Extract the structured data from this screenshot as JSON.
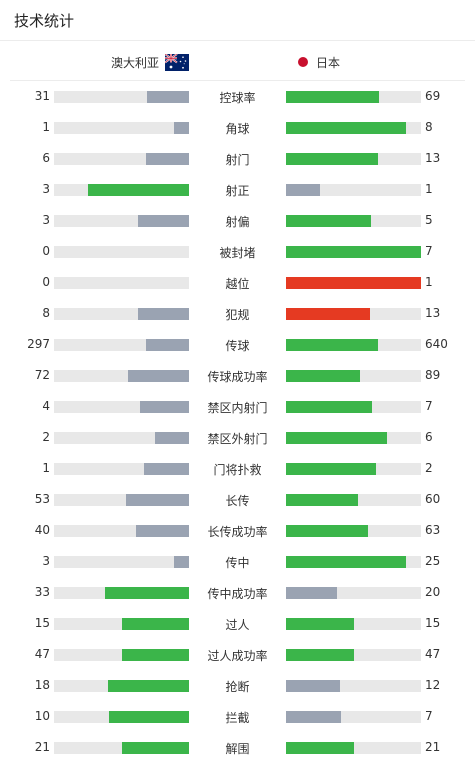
{
  "header": {
    "title": "技术统计"
  },
  "teams": {
    "home": "澳大利亚",
    "away": "日本"
  },
  "colors": {
    "win": "#3bb54a",
    "lose": "#9aa3b2",
    "red": "#e53a22",
    "track": "#e8e8e8"
  },
  "stats": [
    {
      "label": "控球率",
      "home": "31",
      "away": "69",
      "home_frac": 0.31,
      "away_frac": 0.69,
      "home_color": "lose",
      "away_color": "win"
    },
    {
      "label": "角球",
      "home": "1",
      "away": "8",
      "home_frac": 0.11,
      "away_frac": 0.89,
      "home_color": "lose",
      "away_color": "win"
    },
    {
      "label": "射门",
      "home": "6",
      "away": "13",
      "home_frac": 0.32,
      "away_frac": 0.68,
      "home_color": "lose",
      "away_color": "win"
    },
    {
      "label": "射正",
      "home": "3",
      "away": "1",
      "home_frac": 0.75,
      "away_frac": 0.25,
      "home_color": "win",
      "away_color": "lose"
    },
    {
      "label": "射偏",
      "home": "3",
      "away": "5",
      "home_frac": 0.38,
      "away_frac": 0.63,
      "home_color": "lose",
      "away_color": "win"
    },
    {
      "label": "被封堵",
      "home": "0",
      "away": "7",
      "home_frac": 0.0,
      "away_frac": 1.0,
      "home_color": "lose",
      "away_color": "win"
    },
    {
      "label": "越位",
      "home": "0",
      "away": "1",
      "home_frac": 0.0,
      "away_frac": 1.0,
      "home_color": "lose",
      "away_color": "red"
    },
    {
      "label": "犯规",
      "home": "8",
      "away": "13",
      "home_frac": 0.38,
      "away_frac": 0.62,
      "home_color": "lose",
      "away_color": "red"
    },
    {
      "label": "传球",
      "home": "297",
      "away": "640",
      "home_frac": 0.32,
      "away_frac": 0.68,
      "home_color": "lose",
      "away_color": "win"
    },
    {
      "label": "传球成功率",
      "home": "72",
      "away": "89",
      "home_frac": 0.45,
      "away_frac": 0.55,
      "home_color": "lose",
      "away_color": "win"
    },
    {
      "label": "禁区内射门",
      "home": "4",
      "away": "7",
      "home_frac": 0.36,
      "away_frac": 0.64,
      "home_color": "lose",
      "away_color": "win"
    },
    {
      "label": "禁区外射门",
      "home": "2",
      "away": "6",
      "home_frac": 0.25,
      "away_frac": 0.75,
      "home_color": "lose",
      "away_color": "win"
    },
    {
      "label": "门将扑救",
      "home": "1",
      "away": "2",
      "home_frac": 0.33,
      "away_frac": 0.67,
      "home_color": "lose",
      "away_color": "win"
    },
    {
      "label": "长传",
      "home": "53",
      "away": "60",
      "home_frac": 0.47,
      "away_frac": 0.53,
      "home_color": "lose",
      "away_color": "win"
    },
    {
      "label": "长传成功率",
      "home": "40",
      "away": "63",
      "home_frac": 0.39,
      "away_frac": 0.61,
      "home_color": "lose",
      "away_color": "win"
    },
    {
      "label": "传中",
      "home": "3",
      "away": "25",
      "home_frac": 0.11,
      "away_frac": 0.89,
      "home_color": "lose",
      "away_color": "win"
    },
    {
      "label": "传中成功率",
      "home": "33",
      "away": "20",
      "home_frac": 0.62,
      "away_frac": 0.38,
      "home_color": "win",
      "away_color": "lose"
    },
    {
      "label": "过人",
      "home": "15",
      "away": "15",
      "home_frac": 0.5,
      "away_frac": 0.5,
      "home_color": "win",
      "away_color": "win"
    },
    {
      "label": "过人成功率",
      "home": "47",
      "away": "47",
      "home_frac": 0.5,
      "away_frac": 0.5,
      "home_color": "win",
      "away_color": "win"
    },
    {
      "label": "抢断",
      "home": "18",
      "away": "12",
      "home_frac": 0.6,
      "away_frac": 0.4,
      "home_color": "win",
      "away_color": "lose"
    },
    {
      "label": "拦截",
      "home": "10",
      "away": "7",
      "home_frac": 0.59,
      "away_frac": 0.41,
      "home_color": "win",
      "away_color": "lose"
    },
    {
      "label": "解围",
      "home": "21",
      "away": "21",
      "home_frac": 0.5,
      "away_frac": 0.5,
      "home_color": "win",
      "away_color": "win"
    }
  ]
}
